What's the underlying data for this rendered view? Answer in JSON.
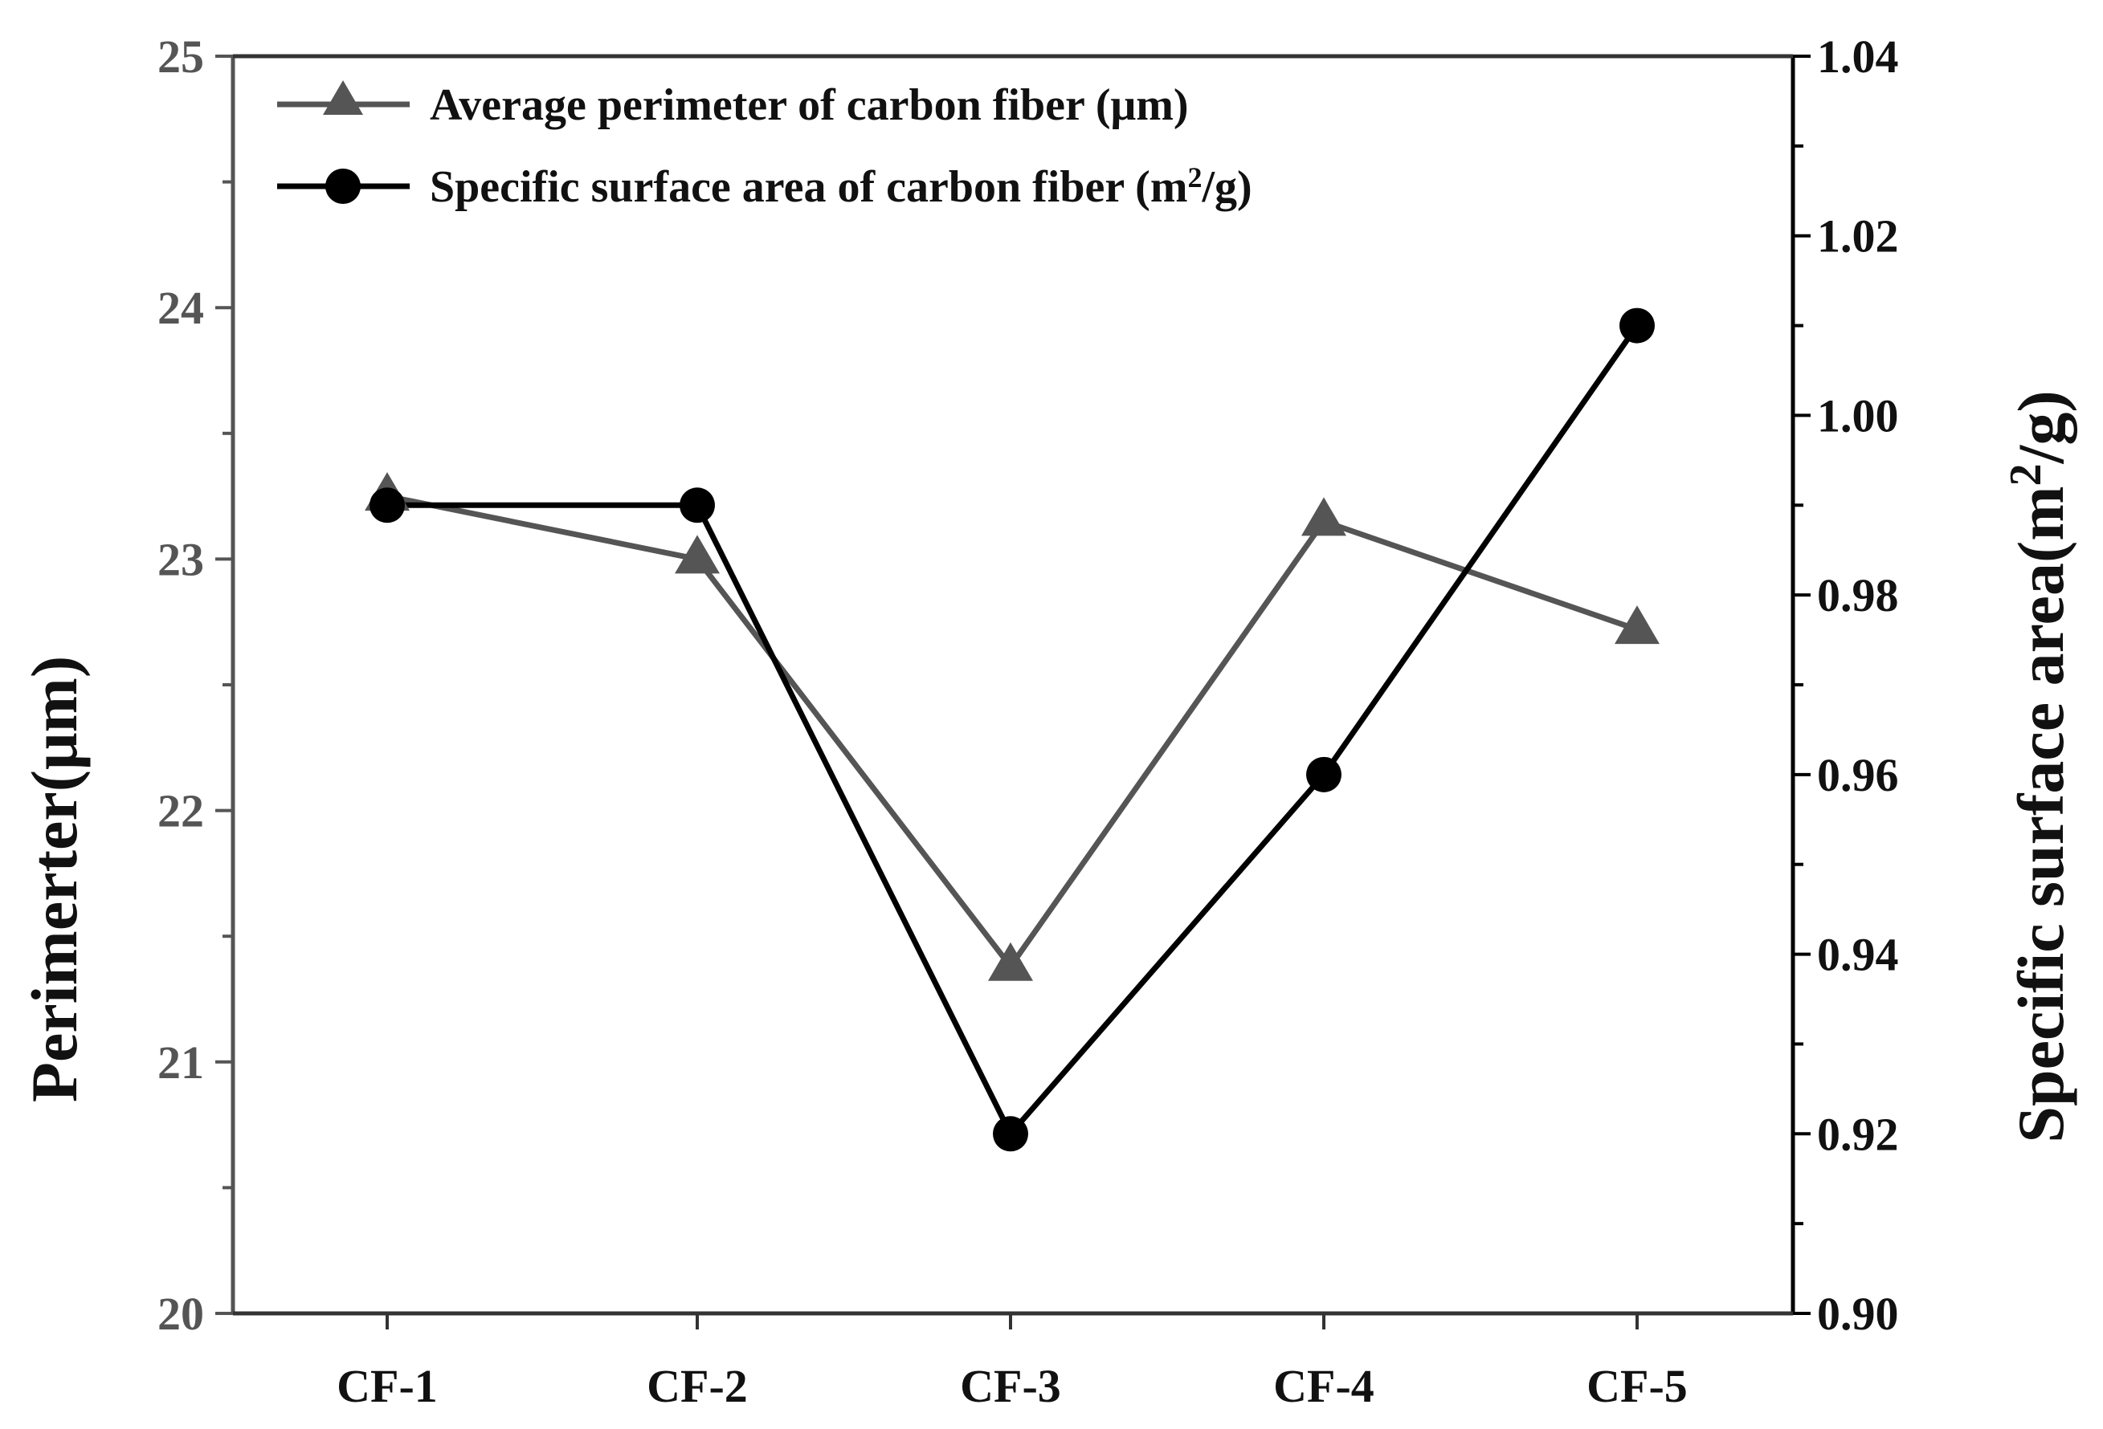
{
  "chart_data": {
    "type": "line",
    "categories": [
      "CF-1",
      "CF-2",
      "CF-3",
      "CF-4",
      "CF-5"
    ],
    "series": [
      {
        "name": "Average perimeter of carbon fiber (μm)",
        "axis": "left",
        "marker": "triangle",
        "color": "#555555",
        "values": [
          23.25,
          23.0,
          21.38,
          23.15,
          22.72
        ]
      },
      {
        "name": "Specific surface area of carbon fiber",
        "unit_base": "(m",
        "unit_sup": "2",
        "unit_tail": "/g)",
        "axis": "right",
        "marker": "circle",
        "color": "#000000",
        "values": [
          0.99,
          0.99,
          0.92,
          0.96,
          1.01
        ]
      }
    ],
    "left_axis": {
      "label": "Perimerter(μm)",
      "ylim": [
        20,
        25
      ],
      "ticks": [
        "20",
        "21",
        "22",
        "23",
        "24",
        "25"
      ],
      "minor_step": 0.5,
      "color": "#555555"
    },
    "right_axis": {
      "label_base": "Specific surface area(m",
      "label_sup": "2",
      "label_tail": "/g)",
      "ylim": [
        0.9,
        1.04
      ],
      "ticks": [
        "0.90",
        "0.92",
        "0.94",
        "0.96",
        "0.98",
        "1.00",
        "1.02",
        "1.04"
      ],
      "minor_step": 0.01,
      "color": "#000000"
    },
    "legend_position": "top-left",
    "grid": false
  }
}
